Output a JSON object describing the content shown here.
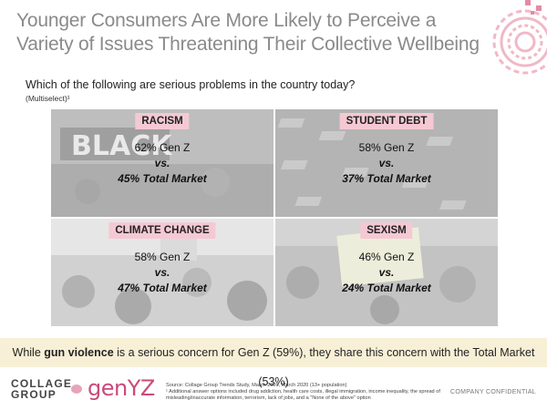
{
  "slide": {
    "title": "Younger Consumers Are More Likely to Perceive a Variety of Issues Threatening Their Collective Wellbeing",
    "question": "Which of the following are serious problems in the country today?",
    "multiselect": "(Multiselect)¹"
  },
  "cells": [
    {
      "label": "RACISM",
      "genz": "62% Gen Z",
      "vs": "vs.",
      "total": "45% Total Market"
    },
    {
      "label": "STUDENT DEBT",
      "genz": "58% Gen Z",
      "vs": "vs.",
      "total": "37% Total Market"
    },
    {
      "label": "CLIMATE CHANGE",
      "genz": "58% Gen Z",
      "vs": "vs.",
      "total": "47% Total Market"
    },
    {
      "label": "SEXISM",
      "genz": "46% Gen Z",
      "vs": "vs.",
      "total": "24% Total Market"
    }
  ],
  "banner": {
    "pre": "While ",
    "bold": "gun violence",
    "post": " is a serious concern for Gen Z (59%), they share this concern with the Total Market (53%)"
  },
  "footer": {
    "logo_line1": "COLLAGE",
    "logo_line2": "GROUP",
    "genyz": "genYZ",
    "source_line1": "Source: Collage Group Trends Study, March 2020, March 2020 (13+ population)",
    "source_line2": "¹ Additional answer options included drug addiction, health care costs, illegal immigration, income inequality, the spread of misleading/inaccurate information, terrorism, lack of jobs, and a \"None of the above\" option",
    "confidential": "COMPANY CONFIDENTIAL"
  },
  "colors": {
    "label_bg": "#f4c9d3",
    "banner_bg": "#f8f0d6",
    "brand": "#c94b7a"
  }
}
